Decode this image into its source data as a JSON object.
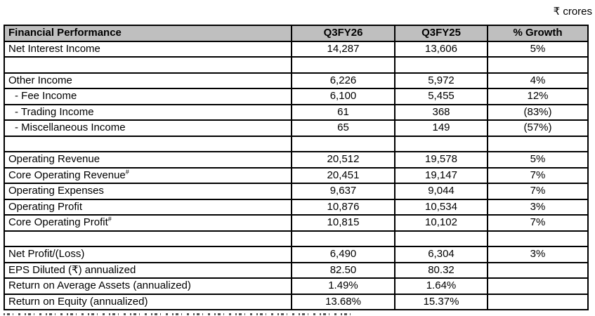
{
  "page": {
    "units_label": "₹ crores"
  },
  "table": {
    "headers": [
      "Financial Performance",
      "Q3FY26",
      "Q3FY25",
      "% Growth"
    ],
    "columns_note": [
      "label",
      "q3fy26",
      "q3fy25",
      "growth"
    ],
    "rows": [
      {
        "label": "Net Interest Income",
        "values": [
          "14,287",
          "13,606",
          "5%"
        ]
      },
      {
        "label": "",
        "values": [
          "",
          "",
          ""
        ]
      },
      {
        "label": "Other Income",
        "values": [
          "6,226",
          "5,972",
          "4%"
        ]
      },
      {
        "label": "- Fee Income",
        "indent": true,
        "values": [
          "6,100",
          "5,455",
          "12%"
        ]
      },
      {
        "label": "- Trading Income",
        "indent": true,
        "values": [
          "61",
          "368",
          "(83%)"
        ]
      },
      {
        "label": "- Miscellaneous Income",
        "indent": true,
        "values": [
          "65",
          "149",
          "(57%)"
        ]
      },
      {
        "label": "",
        "values": [
          "",
          "",
          ""
        ]
      },
      {
        "label": "Operating Revenue",
        "values": [
          "20,512",
          "19,578",
          "5%"
        ]
      },
      {
        "label": "Core Operating Revenue",
        "sup": "#",
        "values": [
          "20,451",
          "19,147",
          "7%"
        ]
      },
      {
        "label": "Operating Expenses",
        "values": [
          "9,637",
          "9,044",
          "7%"
        ]
      },
      {
        "label": "Operating Profit",
        "values": [
          "10,876",
          "10,534",
          "3%"
        ]
      },
      {
        "label": "Core Operating Profit",
        "sup": "#",
        "values": [
          "10,815",
          "10,102",
          "7%"
        ]
      },
      {
        "label": "",
        "values": [
          "",
          "",
          ""
        ]
      },
      {
        "label": "Net Profit/(Loss)",
        "values": [
          "6,490",
          "6,304",
          "3%"
        ]
      },
      {
        "label": "EPS Diluted (₹) annualized",
        "values": [
          "82.50",
          "80.32",
          ""
        ]
      },
      {
        "label": "Return on Average Assets (annualized)",
        "values": [
          "1.49%",
          "1.64%",
          ""
        ]
      },
      {
        "label": "Return on Equity (annualized)",
        "values": [
          "13.68%",
          "15.37%",
          ""
        ]
      }
    ],
    "colors": {
      "header_bg": "#bfbfbf",
      "border": "#000000",
      "text": "#000000"
    }
  }
}
